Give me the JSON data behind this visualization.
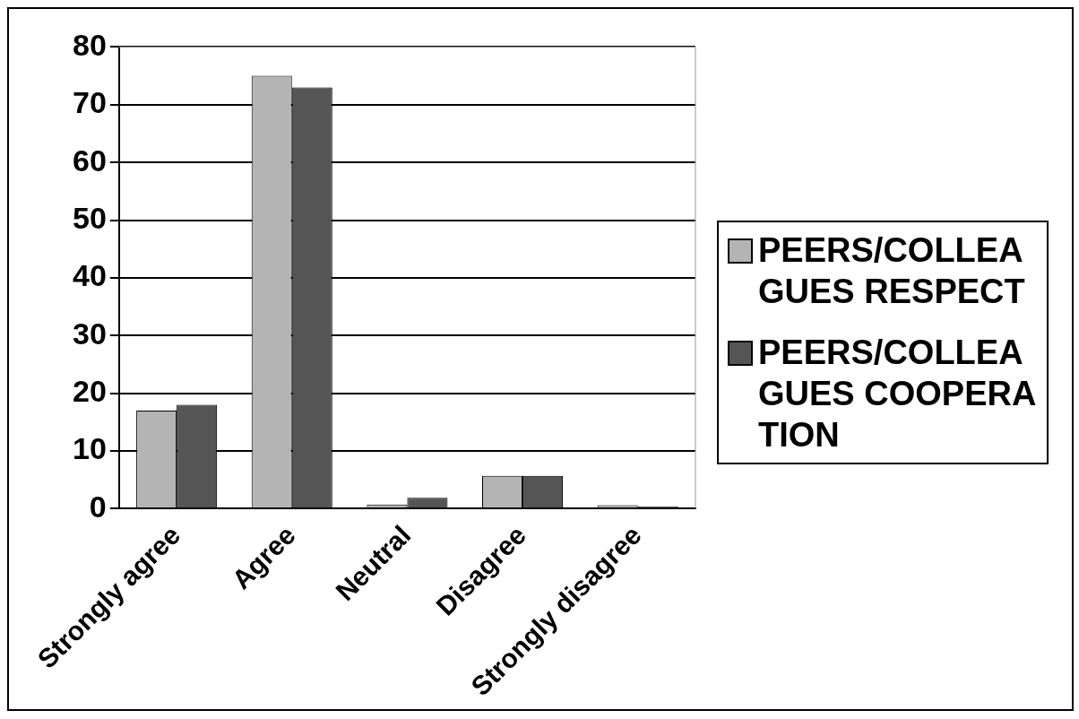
{
  "chart_data": {
    "type": "bar",
    "categories": [
      "Strongly agree",
      "Agree",
      "Neutral",
      "Disagree",
      "Strongly disagree"
    ],
    "series": [
      {
        "name": "PEERS/COLLEAGUES RESPECT",
        "color": "#b4b4b4",
        "values": [
          17,
          75,
          0.7,
          5.7,
          0.6
        ]
      },
      {
        "name": "PEERS/COLLEAGUES COOPERATION",
        "color": "#555555",
        "values": [
          18,
          73,
          1.9,
          5.7,
          0.4
        ]
      }
    ],
    "ylim": [
      0,
      80
    ],
    "yticks": [
      0,
      10,
      20,
      30,
      40,
      50,
      60,
      70,
      80
    ],
    "grid": "y",
    "legend": "right"
  }
}
